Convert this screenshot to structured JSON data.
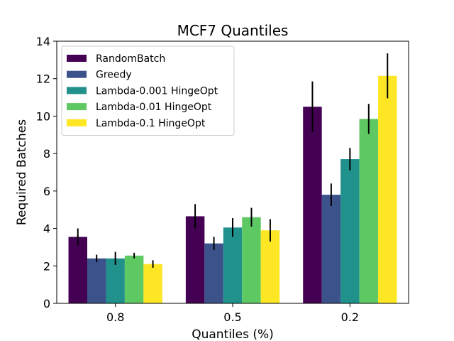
{
  "chart_data": {
    "type": "bar",
    "title": "MCF7 Quantiles",
    "xlabel": "Quantiles (%)",
    "ylabel": "Required Batches",
    "categories": [
      "0.8",
      "0.5",
      "0.2"
    ],
    "ylim": [
      0,
      14
    ],
    "yticks": [
      0,
      2,
      4,
      6,
      8,
      10,
      12,
      14
    ],
    "grid": false,
    "legend_position": "top-left",
    "series": [
      {
        "name": "RandomBatch",
        "color": "#440154",
        "values": [
          3.55,
          4.65,
          10.5
        ],
        "errors": [
          0.45,
          0.65,
          1.35
        ]
      },
      {
        "name": "Greedy",
        "color": "#3b528b",
        "values": [
          2.4,
          3.2,
          5.8
        ],
        "errors": [
          0.2,
          0.35,
          0.6
        ]
      },
      {
        "name": "Lambda-0.001 HingeOpt",
        "color": "#21918c",
        "values": [
          2.4,
          4.05,
          7.7
        ],
        "errors": [
          0.35,
          0.5,
          0.6
        ]
      },
      {
        "name": "Lambda-0.01 HingeOpt",
        "color": "#5ec962",
        "values": [
          2.55,
          4.6,
          9.85
        ],
        "errors": [
          0.15,
          0.5,
          0.8
        ]
      },
      {
        "name": "Lambda-0.1 HingeOpt",
        "color": "#fde725",
        "values": [
          2.1,
          3.9,
          12.15
        ],
        "errors": [
          0.2,
          0.6,
          1.2
        ]
      }
    ]
  }
}
